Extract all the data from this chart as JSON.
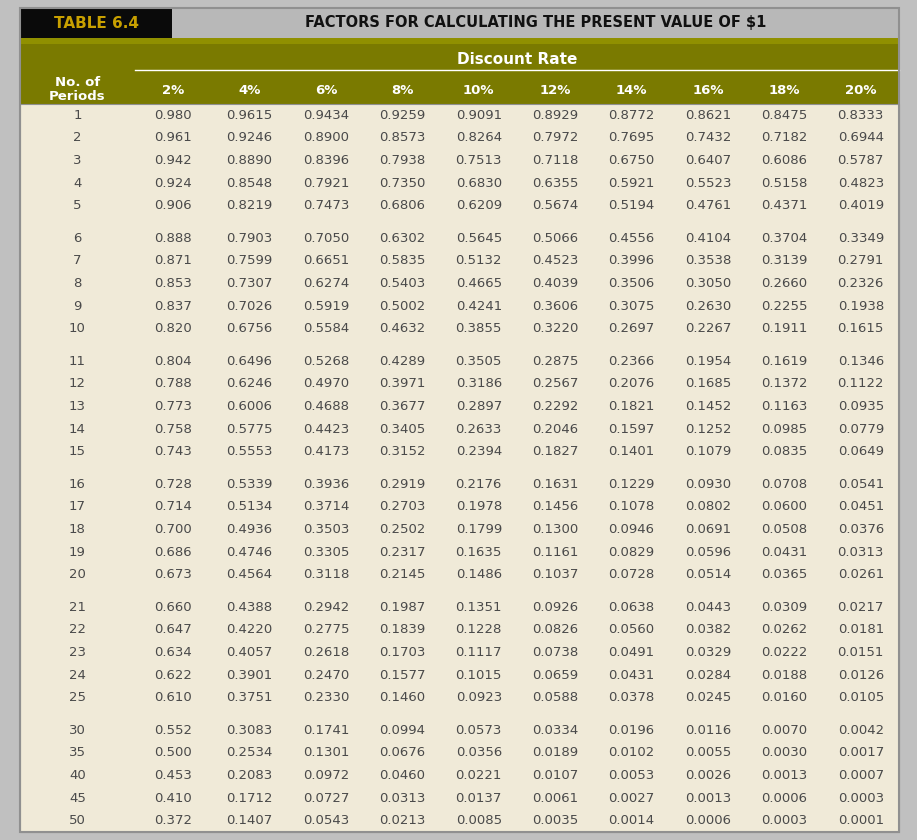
{
  "title_left": "TABLE 6.4",
  "title_right": "FACTORS FOR CALCULATING THE PRESENT VALUE OF $1",
  "header_label": "Discount Rate",
  "col_header": [
    "No. of\nPeriods",
    "2%",
    "4%",
    "6%",
    "8%",
    "10%",
    "12%",
    "14%",
    "16%",
    "18%",
    "20%"
  ],
  "rows": [
    [
      "1",
      "0.980",
      "0.9615",
      "0.9434",
      "0.9259",
      "0.9091",
      "0.8929",
      "0.8772",
      "0.8621",
      "0.8475",
      "0.8333"
    ],
    [
      "2",
      "0.961",
      "0.9246",
      "0.8900",
      "0.8573",
      "0.8264",
      "0.7972",
      "0.7695",
      "0.7432",
      "0.7182",
      "0.6944"
    ],
    [
      "3",
      "0.942",
      "0.8890",
      "0.8396",
      "0.7938",
      "0.7513",
      "0.7118",
      "0.6750",
      "0.6407",
      "0.6086",
      "0.5787"
    ],
    [
      "4",
      "0.924",
      "0.8548",
      "0.7921",
      "0.7350",
      "0.6830",
      "0.6355",
      "0.5921",
      "0.5523",
      "0.5158",
      "0.4823"
    ],
    [
      "5",
      "0.906",
      "0.8219",
      "0.7473",
      "0.6806",
      "0.6209",
      "0.5674",
      "0.5194",
      "0.4761",
      "0.4371",
      "0.4019"
    ],
    [
      "6",
      "0.888",
      "0.7903",
      "0.7050",
      "0.6302",
      "0.5645",
      "0.5066",
      "0.4556",
      "0.4104",
      "0.3704",
      "0.3349"
    ],
    [
      "7",
      "0.871",
      "0.7599",
      "0.6651",
      "0.5835",
      "0.5132",
      "0.4523",
      "0.3996",
      "0.3538",
      "0.3139",
      "0.2791"
    ],
    [
      "8",
      "0.853",
      "0.7307",
      "0.6274",
      "0.5403",
      "0.4665",
      "0.4039",
      "0.3506",
      "0.3050",
      "0.2660",
      "0.2326"
    ],
    [
      "9",
      "0.837",
      "0.7026",
      "0.5919",
      "0.5002",
      "0.4241",
      "0.3606",
      "0.3075",
      "0.2630",
      "0.2255",
      "0.1938"
    ],
    [
      "10",
      "0.820",
      "0.6756",
      "0.5584",
      "0.4632",
      "0.3855",
      "0.3220",
      "0.2697",
      "0.2267",
      "0.1911",
      "0.1615"
    ],
    [
      "11",
      "0.804",
      "0.6496",
      "0.5268",
      "0.4289",
      "0.3505",
      "0.2875",
      "0.2366",
      "0.1954",
      "0.1619",
      "0.1346"
    ],
    [
      "12",
      "0.788",
      "0.6246",
      "0.4970",
      "0.3971",
      "0.3186",
      "0.2567",
      "0.2076",
      "0.1685",
      "0.1372",
      "0.1122"
    ],
    [
      "13",
      "0.773",
      "0.6006",
      "0.4688",
      "0.3677",
      "0.2897",
      "0.2292",
      "0.1821",
      "0.1452",
      "0.1163",
      "0.0935"
    ],
    [
      "14",
      "0.758",
      "0.5775",
      "0.4423",
      "0.3405",
      "0.2633",
      "0.2046",
      "0.1597",
      "0.1252",
      "0.0985",
      "0.0779"
    ],
    [
      "15",
      "0.743",
      "0.5553",
      "0.4173",
      "0.3152",
      "0.2394",
      "0.1827",
      "0.1401",
      "0.1079",
      "0.0835",
      "0.0649"
    ],
    [
      "16",
      "0.728",
      "0.5339",
      "0.3936",
      "0.2919",
      "0.2176",
      "0.1631",
      "0.1229",
      "0.0930",
      "0.0708",
      "0.0541"
    ],
    [
      "17",
      "0.714",
      "0.5134",
      "0.3714",
      "0.2703",
      "0.1978",
      "0.1456",
      "0.1078",
      "0.0802",
      "0.0600",
      "0.0451"
    ],
    [
      "18",
      "0.700",
      "0.4936",
      "0.3503",
      "0.2502",
      "0.1799",
      "0.1300",
      "0.0946",
      "0.0691",
      "0.0508",
      "0.0376"
    ],
    [
      "19",
      "0.686",
      "0.4746",
      "0.3305",
      "0.2317",
      "0.1635",
      "0.1161",
      "0.0829",
      "0.0596",
      "0.0431",
      "0.0313"
    ],
    [
      "20",
      "0.673",
      "0.4564",
      "0.3118",
      "0.2145",
      "0.1486",
      "0.1037",
      "0.0728",
      "0.0514",
      "0.0365",
      "0.0261"
    ],
    [
      "21",
      "0.660",
      "0.4388",
      "0.2942",
      "0.1987",
      "0.1351",
      "0.0926",
      "0.0638",
      "0.0443",
      "0.0309",
      "0.0217"
    ],
    [
      "22",
      "0.647",
      "0.4220",
      "0.2775",
      "0.1839",
      "0.1228",
      "0.0826",
      "0.0560",
      "0.0382",
      "0.0262",
      "0.0181"
    ],
    [
      "23",
      "0.634",
      "0.4057",
      "0.2618",
      "0.1703",
      "0.1117",
      "0.0738",
      "0.0491",
      "0.0329",
      "0.0222",
      "0.0151"
    ],
    [
      "24",
      "0.622",
      "0.3901",
      "0.2470",
      "0.1577",
      "0.1015",
      "0.0659",
      "0.0431",
      "0.0284",
      "0.0188",
      "0.0126"
    ],
    [
      "25",
      "0.610",
      "0.3751",
      "0.2330",
      "0.1460",
      "0.0923",
      "0.0588",
      "0.0378",
      "0.0245",
      "0.0160",
      "0.0105"
    ],
    [
      "30",
      "0.552",
      "0.3083",
      "0.1741",
      "0.0994",
      "0.0573",
      "0.0334",
      "0.0196",
      "0.0116",
      "0.0070",
      "0.0042"
    ],
    [
      "35",
      "0.500",
      "0.2534",
      "0.1301",
      "0.0676",
      "0.0356",
      "0.0189",
      "0.0102",
      "0.0055",
      "0.0030",
      "0.0017"
    ],
    [
      "40",
      "0.453",
      "0.2083",
      "0.0972",
      "0.0460",
      "0.0221",
      "0.0107",
      "0.0053",
      "0.0026",
      "0.0013",
      "0.0007"
    ],
    [
      "45",
      "0.410",
      "0.1712",
      "0.0727",
      "0.0313",
      "0.0137",
      "0.0061",
      "0.0027",
      "0.0013",
      "0.0006",
      "0.0003"
    ],
    [
      "50",
      "0.372",
      "0.1407",
      "0.0543",
      "0.0213",
      "0.0085",
      "0.0035",
      "0.0014",
      "0.0006",
      "0.0003",
      "0.0001"
    ]
  ],
  "group_breaks_after": [
    4,
    9,
    14,
    19,
    24
  ],
  "bg_black": "#0a0a0a",
  "bg_gray": "#b8b8b8",
  "bg_olive": "#7a7a00",
  "bg_cream": "#f0ead8",
  "color_gold_title": "#c8a000",
  "color_white": "#ffffff",
  "color_data_text": "#4a4a4a",
  "color_olive_line": "#909000",
  "outer_border_color": "#909090"
}
